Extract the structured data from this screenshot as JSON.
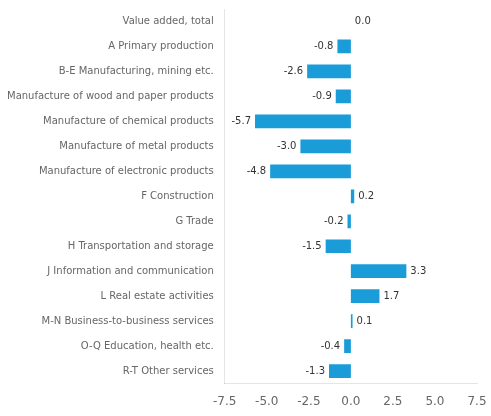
{
  "chart_data": {
    "type": "bar",
    "orientation": "horizontal",
    "categories": [
      "R-T Other services",
      "O-Q Education, health etc.",
      "M-N Business-to-business services",
      "L Real estate activities",
      "J Information and communication",
      "H Transportation and storage",
      "G Trade",
      "F Construction",
      "Manufacture of electronic products",
      "Manufacture of metal products",
      "Manufacture of chemical products",
      "Manufacture of wood and paper products",
      "B-E Manufacturing, mining etc.",
      "A Primary production",
      "Value added, total"
    ],
    "values": [
      -1.3,
      -0.4,
      0.1,
      1.7,
      3.3,
      -1.5,
      -0.2,
      0.2,
      -4.8,
      -3.0,
      -5.7,
      -0.9,
      -2.6,
      -0.8,
      0.0
    ],
    "value_labels": [
      "-1.3",
      "-0.4",
      "0.1",
      "1.7",
      "3.3",
      "-1.5",
      "-0.2",
      "0.2",
      "-4.8",
      "-3.0",
      "-5.7",
      "-0.9",
      "-2.6",
      "-0.8",
      "0.0"
    ],
    "color": "#1a9cd8",
    "xlim": [
      -7.5,
      7.5
    ],
    "xticks": [
      -7.5,
      {
        "value": -5.0,
        "label": "-5.0"
      },
      -2.5,
      {
        "value": 0.0,
        "label": "0.0"
      },
      2.5,
      {
        "value": 5.0,
        "label": "5.0"
      },
      7.5
    ],
    "grid": false,
    "data_labels": true
  }
}
